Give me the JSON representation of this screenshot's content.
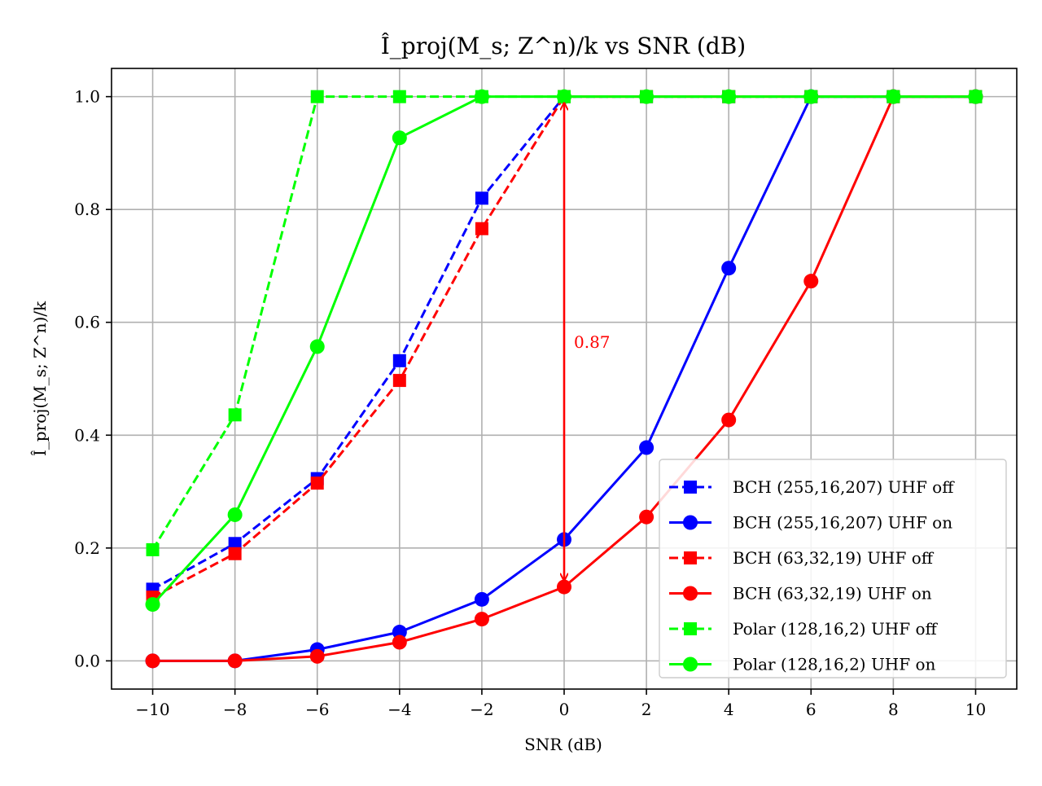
{
  "chart_data": {
    "type": "line",
    "title": "Î_proj(M_s; Z^n)/k vs SNR (dB)",
    "xlabel": "SNR (dB)",
    "ylabel": "Î_proj(M_s; Z^n)/k",
    "xlim": [
      -11,
      11
    ],
    "ylim": [
      -0.05,
      1.05
    ],
    "xticks": [
      -10,
      -8,
      -6,
      -4,
      -2,
      0,
      2,
      4,
      6,
      8,
      10
    ],
    "xtick_labels": [
      "−10",
      "−8",
      "−6",
      "−4",
      "−2",
      "0",
      "2",
      "4",
      "6",
      "8",
      "10"
    ],
    "yticks": [
      0.0,
      0.2,
      0.4,
      0.6,
      0.8,
      1.0
    ],
    "ytick_labels": [
      "0.0",
      "0.2",
      "0.4",
      "0.6",
      "0.8",
      "1.0"
    ],
    "grid": true,
    "legend_position": "lower-right",
    "x": [
      -10,
      -8,
      -6,
      -4,
      -2,
      0,
      2,
      4,
      6,
      8,
      10
    ],
    "series": [
      {
        "name": "BCH (255,16,207) UHF off",
        "color": "#0000ff",
        "style": "dashed",
        "marker": "square",
        "values": [
          0.127,
          0.208,
          0.323,
          0.532,
          0.82,
          1.0,
          1.0,
          1.0,
          1.0,
          1.0,
          1.0
        ]
      },
      {
        "name": "BCH (255,16,207) UHF on",
        "color": "#0000ff",
        "style": "solid",
        "marker": "circle",
        "values": [
          0.0,
          0.0,
          0.02,
          0.051,
          0.109,
          0.215,
          0.378,
          0.696,
          1.0,
          1.0,
          1.0
        ]
      },
      {
        "name": "BCH (63,32,19) UHF off",
        "color": "#ff0000",
        "style": "dashed",
        "marker": "square",
        "values": [
          0.113,
          0.19,
          0.315,
          0.497,
          0.766,
          1.0,
          1.0,
          1.0,
          1.0,
          1.0,
          1.0
        ]
      },
      {
        "name": "BCH (63,32,19) UHF on",
        "color": "#ff0000",
        "style": "solid",
        "marker": "circle",
        "values": [
          0.0,
          0.0,
          0.008,
          0.033,
          0.074,
          0.131,
          0.255,
          0.427,
          0.673,
          1.0,
          1.0
        ]
      },
      {
        "name": "Polar (128,16,2) UHF off",
        "color": "#00ff00",
        "style": "dashed",
        "marker": "square",
        "values": [
          0.197,
          0.436,
          1.0,
          1.0,
          1.0,
          1.0,
          1.0,
          1.0,
          1.0,
          1.0,
          1.0
        ]
      },
      {
        "name": "Polar (128,16,2) UHF on",
        "color": "#00ff00",
        "style": "solid",
        "marker": "circle",
        "values": [
          0.1,
          0.259,
          0.557,
          0.927,
          1.0,
          1.0,
          1.0,
          1.0,
          1.0,
          1.0,
          1.0
        ]
      }
    ],
    "annotation": {
      "text": "0.87",
      "x": 0,
      "y_from": 0.131,
      "y_to": 1.0,
      "label_y": 0.565,
      "color": "#ff0000"
    }
  }
}
